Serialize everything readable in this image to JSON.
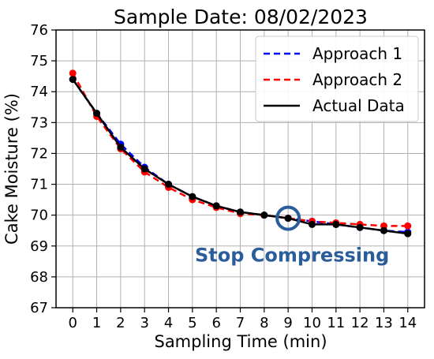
{
  "chart_data": {
    "type": "line",
    "title": "Sample Date: 08/02/2023",
    "xlabel": "Sampling Time (min)",
    "ylabel": "Cake Moisture (%)",
    "x": [
      0,
      1,
      2,
      3,
      4,
      5,
      6,
      7,
      8,
      9,
      10,
      11,
      12,
      13,
      14
    ],
    "xlim": [
      -0.7,
      14.7
    ],
    "ylim": [
      67,
      76
    ],
    "x_ticks": [
      "0",
      "1",
      "2",
      "3",
      "4",
      "5",
      "6",
      "7",
      "8",
      "9",
      "10",
      "11",
      "12",
      "13",
      "14"
    ],
    "y_ticks": [
      "67",
      "68",
      "69",
      "70",
      "71",
      "72",
      "73",
      "74",
      "75",
      "76"
    ],
    "grid": true,
    "legend_position": "top-right",
    "series": [
      {
        "name": "Approach 1",
        "color": "#0000ff",
        "line_style": "dashed",
        "marker": "circle",
        "values": [
          74.4,
          73.3,
          72.3,
          71.55,
          71.0,
          70.6,
          70.3,
          70.1,
          70.0,
          69.9,
          69.8,
          69.7,
          69.6,
          69.5,
          69.45
        ]
      },
      {
        "name": "Approach 2",
        "color": "#ff0000",
        "line_style": "dashed",
        "marker": "circle",
        "values": [
          74.6,
          73.2,
          72.15,
          71.4,
          70.9,
          70.5,
          70.25,
          70.05,
          70.0,
          69.9,
          69.8,
          69.75,
          69.7,
          69.65,
          69.65
        ]
      },
      {
        "name": "Actual Data",
        "color": "#000000",
        "line_style": "solid",
        "marker": "circle",
        "values": [
          74.4,
          73.3,
          72.2,
          71.5,
          71.0,
          70.6,
          70.3,
          70.1,
          70.0,
          69.9,
          69.7,
          69.7,
          69.6,
          69.5,
          69.4
        ]
      }
    ],
    "annotation": {
      "text": "Stop Compressing",
      "color": "#2b5d9b",
      "x": 9,
      "y": 69.9
    }
  }
}
